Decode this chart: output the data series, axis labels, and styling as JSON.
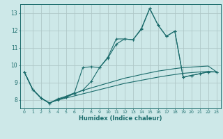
{
  "xlabel": "Humidex (Indice chaleur)",
  "xlim": [
    -0.5,
    23.5
  ],
  "ylim": [
    7.5,
    13.5
  ],
  "yticks": [
    8,
    9,
    10,
    11,
    12,
    13
  ],
  "xticks": [
    0,
    1,
    2,
    3,
    4,
    5,
    6,
    7,
    8,
    9,
    10,
    11,
    12,
    13,
    14,
    15,
    16,
    17,
    18,
    19,
    20,
    21,
    22,
    23
  ],
  "bg_color": "#cde8e8",
  "grid_color": "#b0c8c8",
  "line_color": "#1a6b6b",
  "series1_marked": {
    "x": [
      0,
      1,
      2,
      3,
      4,
      5,
      6,
      7,
      8,
      9,
      10,
      11,
      12,
      13,
      14,
      15,
      16,
      17,
      18,
      19,
      20,
      21,
      22,
      23
    ],
    "y": [
      9.6,
      8.6,
      8.1,
      7.8,
      8.0,
      8.15,
      8.35,
      8.55,
      9.05,
      9.85,
      10.4,
      11.2,
      11.5,
      11.45,
      12.1,
      13.25,
      12.3,
      11.65,
      11.95,
      9.3,
      9.4,
      9.5,
      9.6,
      9.6
    ]
  },
  "series2_marked": {
    "x": [
      0,
      1,
      2,
      3,
      4,
      5,
      6,
      7,
      8,
      9,
      10,
      11,
      12,
      13,
      14,
      15,
      16,
      17,
      18,
      19,
      20,
      21,
      22,
      23
    ],
    "y": [
      9.6,
      8.6,
      8.1,
      7.8,
      8.05,
      8.2,
      8.4,
      9.85,
      9.9,
      9.85,
      10.45,
      11.5,
      11.5,
      11.45,
      12.05,
      13.25,
      12.3,
      11.65,
      11.95,
      9.3,
      9.4,
      9.5,
      9.6,
      9.6
    ]
  },
  "series3_plain": {
    "x": [
      0,
      1,
      2,
      3,
      4,
      5,
      6,
      7,
      8,
      9,
      10,
      11,
      12,
      13,
      14,
      15,
      16,
      17,
      18,
      19,
      20,
      21,
      22,
      23
    ],
    "y": [
      9.6,
      8.6,
      8.1,
      7.82,
      8.0,
      8.18,
      8.36,
      8.54,
      8.68,
      8.82,
      8.96,
      9.1,
      9.24,
      9.34,
      9.45,
      9.55,
      9.65,
      9.72,
      9.79,
      9.85,
      9.88,
      9.91,
      9.94,
      9.6
    ]
  },
  "series4_plain": {
    "x": [
      0,
      1,
      2,
      3,
      4,
      5,
      6,
      7,
      8,
      9,
      10,
      11,
      12,
      13,
      14,
      15,
      16,
      17,
      18,
      19,
      20,
      21,
      22,
      23
    ],
    "y": [
      9.6,
      8.6,
      8.1,
      7.82,
      7.98,
      8.1,
      8.22,
      8.34,
      8.46,
      8.58,
      8.7,
      8.82,
      8.94,
      9.03,
      9.12,
      9.21,
      9.3,
      9.38,
      9.45,
      9.52,
      9.56,
      9.6,
      9.63,
      9.6
    ]
  }
}
